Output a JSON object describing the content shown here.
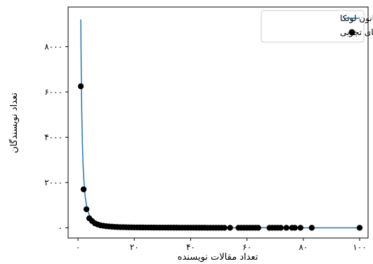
{
  "chart_data": {
    "type": "scatter",
    "xlabel": "تعداد مقالات نویسنده",
    "ylabel": "تعداد نویسندگان",
    "xlim": [
      -3.5,
      103
    ],
    "ylim": [
      -450,
      9750
    ],
    "x_ticks": [
      0,
      20,
      40,
      60,
      80,
      100
    ],
    "x_tick_labels": [
      "۰",
      "۲۰",
      "۴۰",
      "۶۰",
      "۸۰",
      "۱۰۰"
    ],
    "y_ticks": [
      0,
      2000,
      4000,
      6000,
      8000
    ],
    "y_tick_labels": [
      "۰",
      "۲۰۰۰",
      "۴۰۰۰",
      "۶۰۰۰",
      "۸۰۰۰"
    ],
    "legend_position": "top-right",
    "grid": false,
    "series": [
      {
        "name": "قانون لوتکا",
        "kind": "line",
        "color": "#1f77b4",
        "law": {
          "C": 9200,
          "exponent": 2,
          "x_from": 1,
          "x_to": 100
        }
      },
      {
        "name": "داده های تجربی",
        "kind": "scatter",
        "color": "#000000",
        "x": [
          1,
          2,
          3,
          4,
          5,
          6,
          7,
          8,
          9,
          10,
          11,
          12,
          13,
          14,
          15,
          16,
          17,
          18,
          19,
          20,
          21,
          22,
          23,
          24,
          25,
          26,
          27,
          28,
          29,
          30,
          31,
          32,
          33,
          34,
          35,
          36,
          37,
          38,
          39,
          40,
          41,
          42,
          43,
          44,
          45,
          46,
          47,
          48,
          49,
          50,
          51,
          52,
          54,
          57,
          58,
          59,
          60,
          61,
          62,
          63,
          64,
          68,
          69,
          70,
          71,
          72,
          74,
          76,
          77,
          79,
          83,
          100
        ],
        "y": [
          6250,
          1700,
          820,
          420,
          300,
          200,
          150,
          110,
          90,
          70,
          60,
          50,
          40,
          35,
          30,
          28,
          24,
          22,
          20,
          18,
          17,
          16,
          15,
          14,
          13,
          12,
          11,
          10,
          10,
          9,
          9,
          8,
          8,
          7,
          7,
          6,
          6,
          5,
          5,
          5,
          5,
          4,
          4,
          4,
          4,
          3,
          3,
          3,
          3,
          3,
          3,
          2,
          2,
          2,
          2,
          2,
          2,
          2,
          2,
          2,
          1,
          1,
          1,
          1,
          1,
          1,
          1,
          1,
          1,
          1,
          1,
          1
        ]
      }
    ]
  }
}
